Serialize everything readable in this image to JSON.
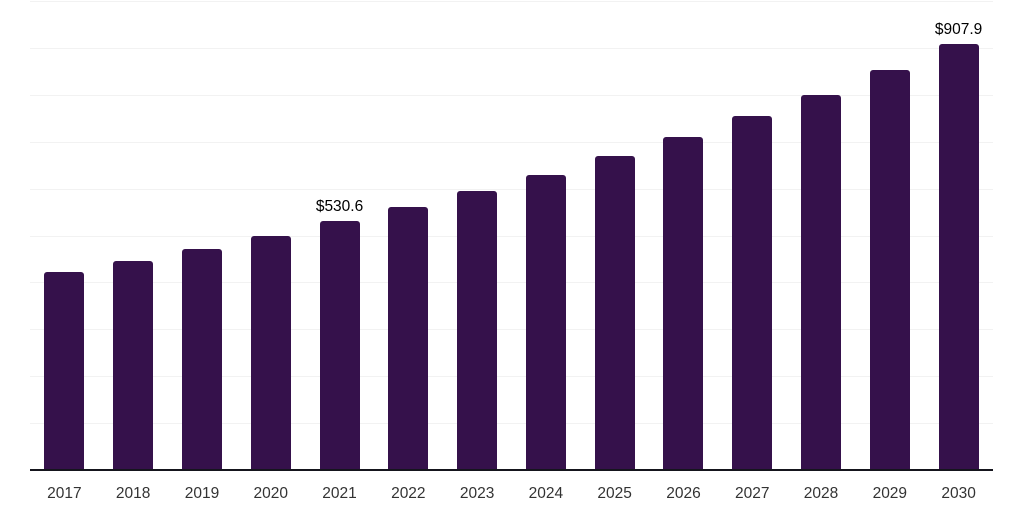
{
  "chart_data": {
    "type": "bar",
    "title": "",
    "xlabel": "",
    "ylabel": "",
    "categories": [
      "2017",
      "2018",
      "2019",
      "2020",
      "2021",
      "2022",
      "2023",
      "2024",
      "2025",
      "2026",
      "2027",
      "2028",
      "2029",
      "2030"
    ],
    "values": [
      422,
      445,
      471,
      500,
      530.6,
      561,
      594,
      630,
      670,
      710,
      754,
      800,
      853,
      907.9
    ],
    "data_labels": [
      "",
      "",
      "",
      "",
      "$530.6",
      "",
      "",
      "",
      "",
      "",
      "",
      "",
      "",
      "$907.9"
    ],
    "ylim": [
      0,
      1000
    ],
    "gridline_step": 100,
    "grid": "horizontal",
    "legend": "none",
    "y_axis_tick_labels": "none",
    "bar_color": "#35114B",
    "axis_color": "#15151d",
    "gridline_color": "#f2f2f2",
    "tick_label_color": "#333333",
    "data_label_color": "#000000",
    "background_color": "#ffffff"
  }
}
